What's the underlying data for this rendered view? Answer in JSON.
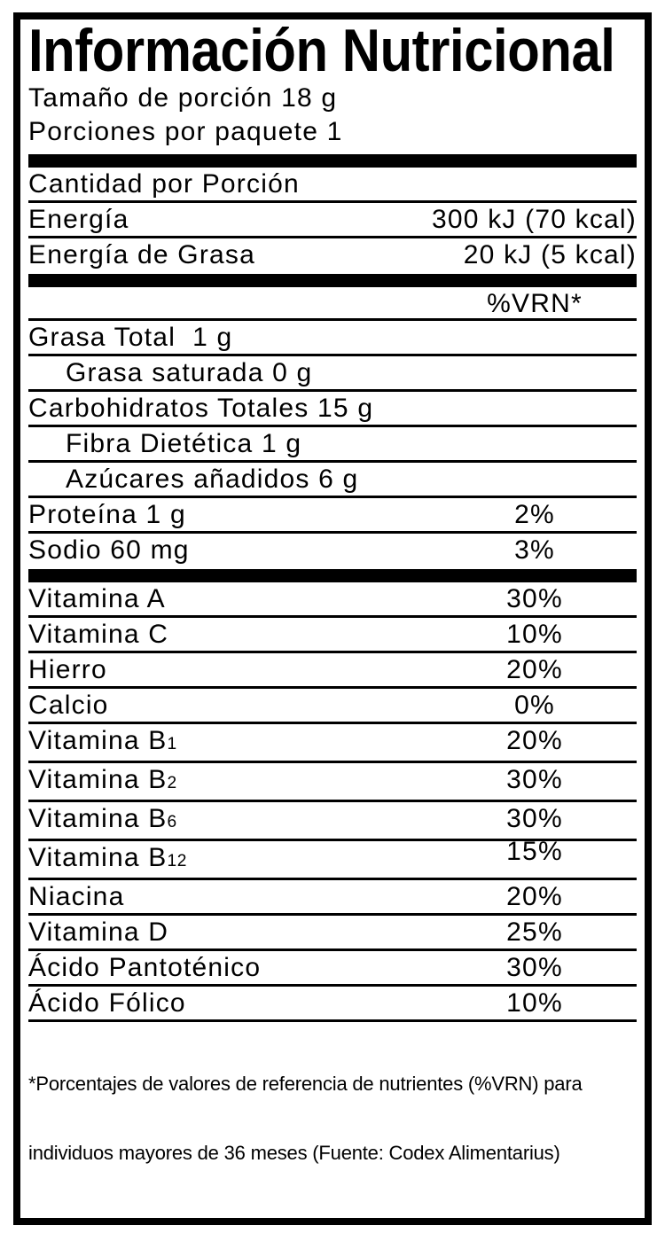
{
  "nutrition_label": {
    "title": "Información Nutricional",
    "serving_size": "Tamaño de porción 18 g",
    "servings_per_package": "Porciones por paquete 1",
    "amount_per_serving_header": "Cantidad por Porción",
    "energy_rows": [
      {
        "label": "Energía",
        "value": "300 kJ (70 kcal)"
      },
      {
        "label": "Energía de Grasa",
        "value": "20 kJ (5 kcal)"
      }
    ],
    "vrn_column_header": "%VRN*",
    "nutrient_rows": [
      {
        "label": "Grasa Total  1 g",
        "value": ""
      },
      {
        "label": "Grasa saturada 0 g",
        "value": ""
      },
      {
        "label": "Carbohidratos Totales 15 g",
        "value": ""
      },
      {
        "label": "Fibra Dietética 1 g",
        "value": ""
      },
      {
        "label": "Azúcares añadidos 6 g",
        "value": ""
      },
      {
        "label": "Proteína 1 g",
        "value": "2%"
      },
      {
        "label": "Sodio 60 mg",
        "value": "3%"
      }
    ],
    "vitamin_rows": [
      {
        "label": "Vitamina A",
        "value": "30%"
      },
      {
        "label": "Vitamina C",
        "value": "10%"
      },
      {
        "label": "Hierro",
        "value": "20%"
      },
      {
        "label": "Calcio",
        "value": "0%"
      },
      {
        "label": "Vitamina B",
        "sub": "1",
        "value": "20%"
      },
      {
        "label": "Vitamina B",
        "sub": "2",
        "value": "30%"
      },
      {
        "label": "Vitamina B",
        "sub": "6",
        "value": "30%"
      },
      {
        "label": "Vitamina B",
        "sub": "12",
        "value": "15%"
      },
      {
        "label": "Niacina",
        "value": "20%"
      },
      {
        "label": "Vitamina D",
        "value": "25%"
      },
      {
        "label": "Ácido Pantoténico",
        "value": "30%"
      },
      {
        "label": "Ácido Fólico",
        "value": "10%"
      }
    ],
    "footnote_line1": "*Porcentajes de valores de referencia de nutrientes (%VRN) para",
    "footnote_line2": "individuos mayores de 36 meses (Fuente: Codex Alimentarius)",
    "colors": {
      "text": "#000000",
      "background": "#ffffff"
    }
  }
}
